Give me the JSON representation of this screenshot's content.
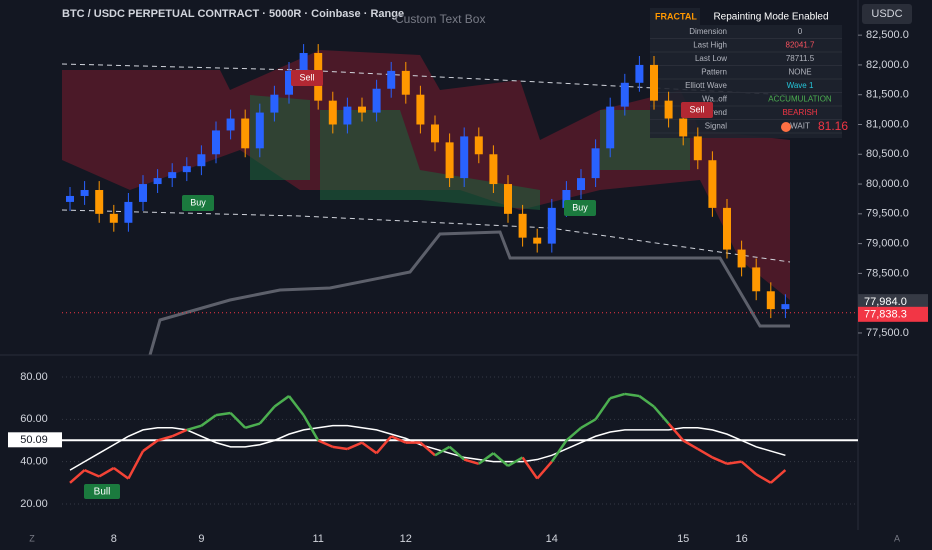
{
  "chart_data": [
    {
      "type": "candlestick",
      "title": "BTC / USDC PERPETUAL CONTRACT · 5000R · Coinbase · Range",
      "subtitle": "Custom Text Box",
      "categories": [
        null,
        null,
        null,
        "8",
        null,
        null,
        null,
        null,
        null,
        "9",
        null,
        null,
        null,
        null,
        null,
        null,
        null,
        "11",
        null,
        null,
        null,
        null,
        null,
        "12",
        null,
        null,
        null,
        null,
        null,
        null,
        null,
        null,
        null,
        "14",
        null,
        null,
        null,
        null,
        null,
        null,
        null,
        null,
        "15",
        null,
        null,
        null,
        "16",
        null,
        null,
        null
      ],
      "open": [
        79700,
        79800,
        79900,
        79500,
        79350,
        79700,
        80000,
        80100,
        80200,
        80300,
        80500,
        80900,
        81100,
        80600,
        81200,
        81500,
        81900,
        82200,
        81400,
        81000,
        81300,
        81200,
        81600,
        81900,
        81500,
        81000,
        80700,
        80100,
        80800,
        80500,
        80000,
        79500,
        79100,
        79000,
        79600,
        79900,
        80100,
        80600,
        81300,
        81700,
        82000,
        81400,
        81100,
        80800,
        80400,
        79600,
        78900,
        78600,
        78200,
        77900
      ],
      "high": [
        79950,
        80050,
        80050,
        79650,
        79850,
        80150,
        80250,
        80350,
        80450,
        80650,
        81050,
        81250,
        81250,
        81350,
        81650,
        82050,
        82350,
        82350,
        81550,
        81450,
        81450,
        81750,
        82050,
        82050,
        81650,
        81150,
        80850,
        80950,
        80950,
        80650,
        80150,
        79650,
        79250,
        79750,
        80050,
        80250,
        80750,
        81450,
        81850,
        82150,
        82150,
        81550,
        81250,
        80950,
        80550,
        79750,
        79050,
        78750,
        78350,
        78150
      ],
      "low": [
        79550,
        79650,
        79350,
        79200,
        79200,
        79550,
        79850,
        79950,
        80050,
        80150,
        80350,
        80750,
        80450,
        80450,
        81050,
        81350,
        81750,
        81250,
        80850,
        80850,
        81050,
        81050,
        81450,
        81350,
        80850,
        80550,
        79950,
        79950,
        80350,
        79850,
        79350,
        78950,
        78850,
        78850,
        79450,
        79750,
        79950,
        80450,
        81150,
        81550,
        81250,
        80950,
        80650,
        80250,
        79450,
        78750,
        78450,
        78050,
        77750,
        77750
      ],
      "close": [
        79800,
        79900,
        79500,
        79350,
        79700,
        80000,
        80100,
        80200,
        80300,
        80500,
        80900,
        81100,
        80600,
        81200,
        81500,
        81900,
        82200,
        81400,
        81000,
        81300,
        81200,
        81600,
        81900,
        81500,
        81000,
        80700,
        80100,
        80800,
        80500,
        80000,
        79500,
        79100,
        79000,
        79600,
        79900,
        80100,
        80600,
        81300,
        81700,
        82000,
        81400,
        81100,
        80800,
        80400,
        79600,
        78900,
        78600,
        78200,
        77900,
        77984
      ],
      "up_color": "#2962ff",
      "down_color": "#ff9800",
      "ylim": [
        77130,
        83090
      ],
      "yticks": [
        {
          "value": 77500,
          "label": "77,500.0"
        },
        {
          "value": 78000,
          "label": "78,000.0"
        },
        {
          "value": 78500,
          "label": "78,500.0"
        },
        {
          "value": 79000,
          "label": "79,000.0"
        },
        {
          "value": 79500,
          "label": "79,500.0"
        },
        {
          "value": 80000,
          "label": "80,000.0"
        },
        {
          "value": 80500,
          "label": "80,500.0"
        },
        {
          "value": 81000,
          "label": "81,000.0"
        },
        {
          "value": 81500,
          "label": "81,500.0"
        },
        {
          "value": 82000,
          "label": "82,000.0"
        },
        {
          "value": 82500,
          "label": "82,500.0"
        }
      ],
      "price_labels": [
        {
          "value": 77984,
          "label": "77,984.0",
          "color": "#363a45"
        },
        {
          "value": 77838.3,
          "label": "77,838.3",
          "color": "#f23645"
        }
      ],
      "annotations": [
        "Sell",
        "Buy",
        "Buy",
        "Sell"
      ],
      "marker_label": {
        "value": 81.16,
        "label": "81.16"
      }
    },
    {
      "type": "line",
      "series": [
        {
          "values": [
            30,
            36,
            33,
            37,
            32,
            45,
            50,
            52,
            55,
            57,
            62,
            63,
            56,
            58,
            66,
            71,
            62,
            50,
            47,
            46,
            49,
            44,
            52,
            49,
            49,
            43,
            47,
            41,
            39,
            44,
            38,
            42,
            32,
            40,
            50,
            56,
            60,
            70,
            72,
            71,
            66,
            58,
            50,
            46,
            42,
            39,
            40,
            34,
            30,
            36
          ],
          "up_color": "#4caf50",
          "down_color": "#f44336"
        },
        {
          "values": [
            36,
            40,
            44,
            48,
            52,
            55,
            56,
            56,
            55,
            52,
            49,
            47,
            47,
            48,
            50,
            53,
            55,
            56,
            57,
            57,
            56,
            55,
            53,
            51,
            48,
            46,
            44,
            42,
            41,
            40,
            40,
            40,
            41,
            43,
            46,
            49,
            52,
            54,
            55,
            55,
            55,
            55,
            56,
            56,
            55,
            53,
            50,
            47,
            45,
            43
          ],
          "color": "#ffffff"
        }
      ],
      "current": {
        "value": 50.09,
        "label": "50.09"
      },
      "ylim": [
        7.7,
        90.4
      ],
      "yticks": [
        {
          "value": 20,
          "label": "20.00"
        },
        {
          "value": 40,
          "label": "40.00"
        },
        {
          "value": 60,
          "label": "60.00"
        },
        {
          "value": 80,
          "label": "80.00"
        }
      ],
      "annotations": [
        "Bull"
      ]
    }
  ],
  "info_table": {
    "title": "FRACTAL",
    "badge": "Repainting Mode Enabled",
    "rows": [
      [
        "Dimension",
        "0"
      ],
      [
        "Last High",
        "82041.7"
      ],
      [
        "Last Low",
        "78711.5"
      ],
      [
        "Pattern",
        "NONE"
      ],
      [
        "Elliott Wave",
        "Wave 1"
      ],
      [
        "Wa..off",
        "ACCUMULATION"
      ],
      [
        "Trend",
        "BEARISH"
      ],
      [
        "Signal",
        "WAIT"
      ]
    ]
  },
  "toolbar": {
    "currency": "USDC",
    "left_button": "Z",
    "right_button": "A"
  }
}
